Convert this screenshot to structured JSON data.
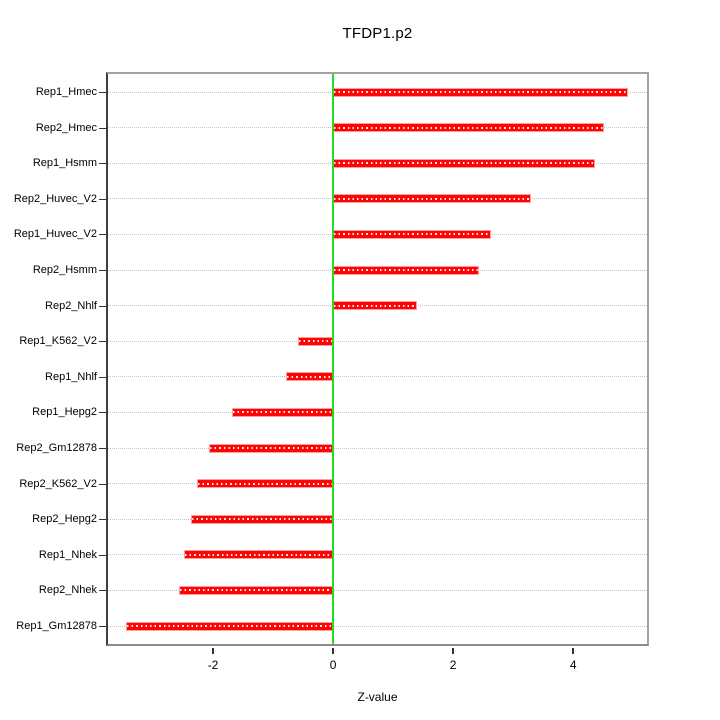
{
  "figure": {
    "title": "TFDP1.p2",
    "xlabel": "Z-value"
  },
  "chart_data": {
    "type": "bar",
    "orientation": "horizontal",
    "title": "TFDP1.p2",
    "xlabel": "Z-value",
    "ylabel": "",
    "categories": [
      "Rep1_Hmec",
      "Rep2_Hmec",
      "Rep1_Hsmm",
      "Rep2_Huvec_V2",
      "Rep1_Huvec_V2",
      "Rep2_Hsmm",
      "Rep2_Nhlf",
      "Rep1_K562_V2",
      "Rep1_Nhlf",
      "Rep1_Hepg2",
      "Rep2_Gm12878",
      "Rep2_K562_V2",
      "Rep2_Hepg2",
      "Rep1_Nhek",
      "Rep2_Nhek",
      "Rep1_Gm12878"
    ],
    "values": [
      4.92,
      4.52,
      4.37,
      3.3,
      2.63,
      2.43,
      1.4,
      -0.58,
      -0.78,
      -1.68,
      -2.06,
      -2.27,
      -2.36,
      -2.48,
      -2.56,
      -3.45
    ],
    "xticks": [
      -2,
      0,
      2,
      4
    ],
    "xtick_labels": [
      "-2",
      "0",
      "2",
      "4"
    ],
    "xlim": [
      -3.75,
      5.23
    ],
    "grid": "horizontal-dotted",
    "legend": null,
    "colors": {
      "bar": "#fb0505",
      "bar_edge": "#ff9e9e",
      "zero_line": "#22dd22",
      "gridline": "#c6c6c6",
      "frame": "#a2a2a2",
      "axis_text": "#000000"
    }
  }
}
